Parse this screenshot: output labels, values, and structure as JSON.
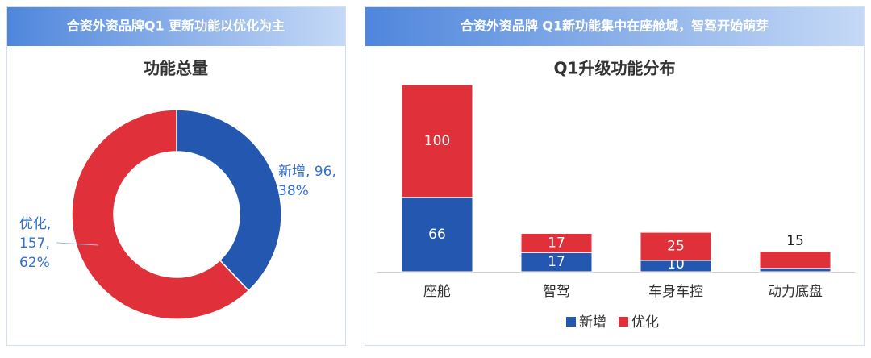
{
  "chart_data": [
    {
      "type": "pie",
      "header": "合资外资品牌Q1 更新功能以优化为主",
      "title": "功能总量",
      "categories": [
        "新增",
        "优化"
      ],
      "values": [
        96,
        157
      ],
      "value_labels": [
        "新增, 96, 38%",
        "优化, 157, 62%"
      ],
      "colors": [
        "#2457b0",
        "#e0313b"
      ]
    },
    {
      "type": "stacked_bar",
      "header": "合资外资品牌 Q1新功能集中在座舱域，智驾开始萌芽",
      "title": "Q1升级功能分布",
      "categories": [
        "座舱",
        "智驾",
        "车身车控",
        "动力底盘"
      ],
      "series": [
        {
          "name": "新增",
          "color": "#2457b0",
          "values": [
            66,
            17,
            10,
            3
          ]
        },
        {
          "name": "优化",
          "color": "#e0313b",
          "values": [
            100,
            17,
            25,
            15
          ]
        }
      ]
    }
  ]
}
